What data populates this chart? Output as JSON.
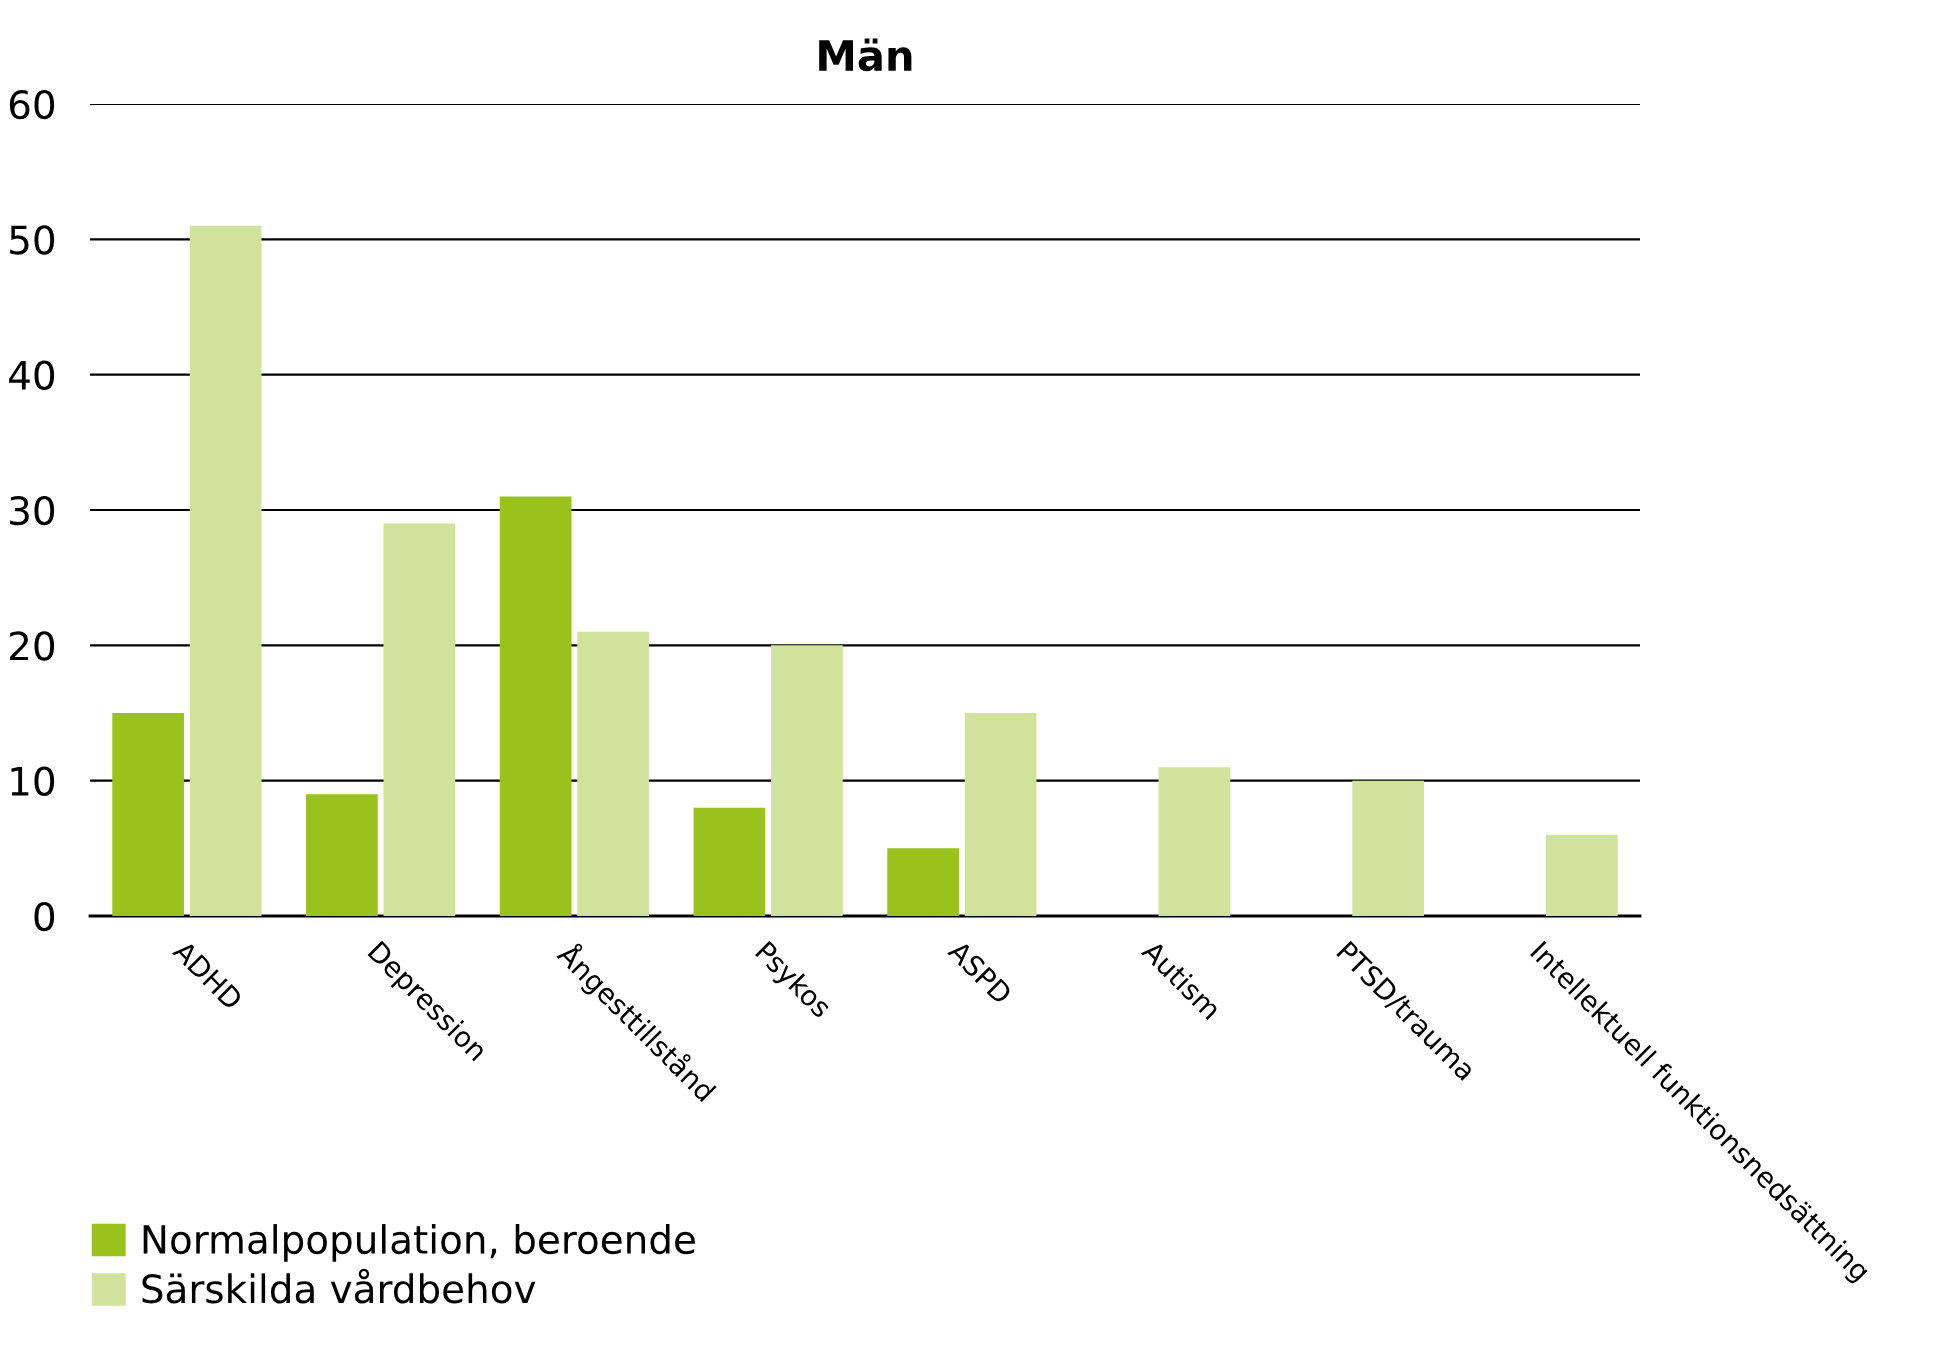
{
  "chart_data": {
    "type": "bar",
    "title": "Män",
    "categories": [
      "ADHD",
      "Depression",
      "Ångesttillstånd",
      "Psykos",
      "ASPD",
      "Autism",
      "PTSD/trauma",
      "Intellektuell funktionsnedsättning"
    ],
    "series": [
      {
        "name": "Normalpopulation, beroende",
        "color": "#99c31c",
        "values": [
          15,
          9,
          31,
          8,
          5,
          0,
          0,
          0
        ]
      },
      {
        "name": "Särskilda vårdbehov",
        "color": "#d0e29c",
        "values": [
          51,
          29,
          21,
          20,
          15,
          11,
          10,
          6
        ]
      }
    ],
    "ylim": [
      0,
      60
    ],
    "yticks": [
      0,
      10,
      20,
      30,
      40,
      50,
      60
    ],
    "grid": "y",
    "legend": "bottom left"
  }
}
